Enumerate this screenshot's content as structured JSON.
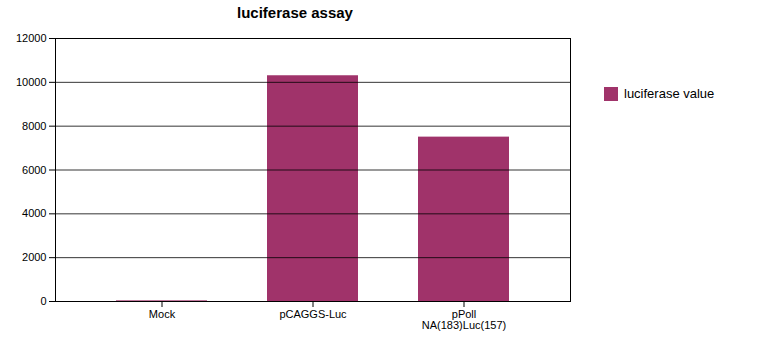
{
  "chart_data": {
    "type": "bar",
    "title": "luciferase assay",
    "categories": [
      "Mock",
      "pCAGGS-Luc",
      "pPoll\nNA(183)Luc(157)"
    ],
    "series": [
      {
        "name": "luciferase value",
        "color": "#a0336a",
        "values": [
          30,
          10300,
          7500
        ]
      }
    ],
    "ylim": [
      0,
      12000
    ],
    "yticks": [
      0,
      2000,
      4000,
      6000,
      8000,
      10000,
      12000
    ],
    "grid": true,
    "legend": "right"
  }
}
